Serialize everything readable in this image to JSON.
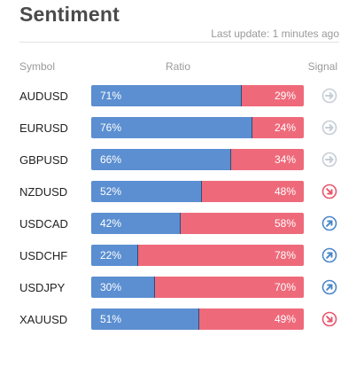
{
  "header": {
    "title": "Sentiment",
    "last_update": "Last update: 1 minutes ago"
  },
  "columns": {
    "symbol": "Symbol",
    "ratio": "Ratio",
    "signal": "Signal"
  },
  "colors": {
    "buy": "#5b8fd1",
    "sell": "#ee6a7b",
    "neutral_signal": "#c5cdd6",
    "buy_signal": "#4a86c8",
    "sell_signal": "#e8566c"
  },
  "rows": [
    {
      "symbol": "AUDUSD",
      "buy": 71,
      "buy_label": "71%",
      "sell_label": "29%",
      "signal": "neutral",
      "signal_icon": "arrow-right-icon"
    },
    {
      "symbol": "EURUSD",
      "buy": 76,
      "buy_label": "76%",
      "sell_label": "24%",
      "signal": "neutral",
      "signal_icon": "arrow-right-icon"
    },
    {
      "symbol": "GBPUSD",
      "buy": 66,
      "buy_label": "66%",
      "sell_label": "34%",
      "signal": "neutral",
      "signal_icon": "arrow-right-icon"
    },
    {
      "symbol": "NZDUSD",
      "buy": 52,
      "buy_label": "52%",
      "sell_label": "48%",
      "signal": "sell",
      "signal_icon": "arrow-down-right-icon"
    },
    {
      "symbol": "USDCAD",
      "buy": 42,
      "buy_label": "42%",
      "sell_label": "58%",
      "signal": "buy",
      "signal_icon": "arrow-up-right-icon"
    },
    {
      "symbol": "USDCHF",
      "buy": 22,
      "buy_label": "22%",
      "sell_label": "78%",
      "signal": "buy",
      "signal_icon": "arrow-up-right-icon"
    },
    {
      "symbol": "USDJPY",
      "buy": 30,
      "buy_label": "30%",
      "sell_label": "70%",
      "signal": "buy",
      "signal_icon": "arrow-up-right-icon"
    },
    {
      "symbol": "XAUUSD",
      "buy": 51,
      "buy_label": "51%",
      "sell_label": "49%",
      "signal": "sell",
      "signal_icon": "arrow-down-right-icon"
    }
  ]
}
